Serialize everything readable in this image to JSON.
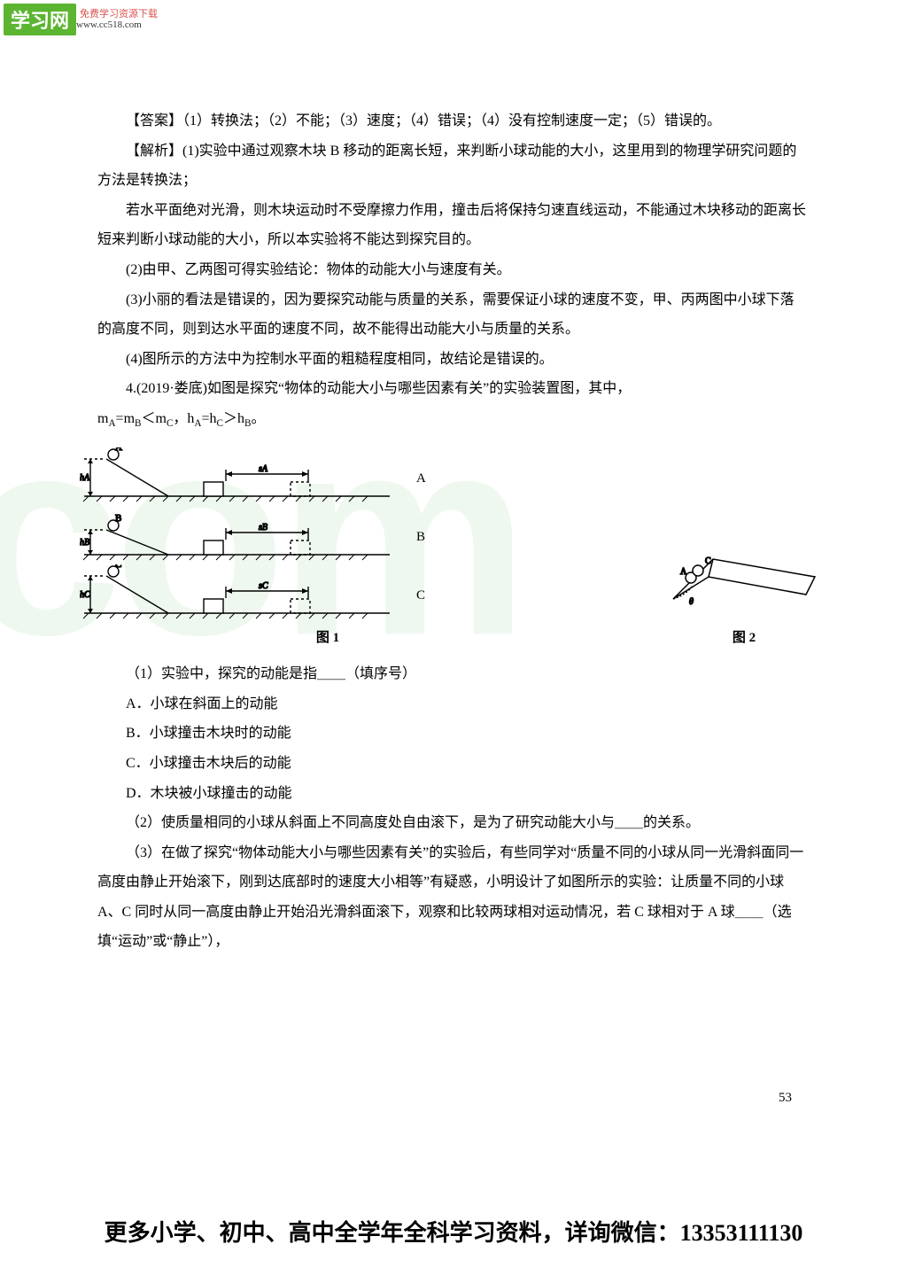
{
  "logo": {
    "main": "学习网",
    "sub1": "免费学习资源下载",
    "sub2": "www.cc518.com"
  },
  "watermark": "com",
  "paragraphs": {
    "answer": "【答案】（1）转换法；（2）不能；（3）速度；（4）错误；（4）没有控制速度一定；（5）错误的。",
    "ans2": "",
    "expl1": "【解析】(1)实验中通过观察木块 B 移动的距离长短，来判断小球动能的大小，这里用到的物理学研究问题的方法是转换法；",
    "expl2": "若水平面绝对光滑，则木块运动时不受摩擦力作用，撞击后将保持匀速直线运动，不能通过木块移动的距离长短来判断小球动能的大小，所以本实验将不能达到探究目的。",
    "expl3": "(2)由甲、乙两图可得实验结论：物体的动能大小与速度有关。",
    "expl4": "(3)小丽的看法是错误的，因为要探究动能与质量的关系，需要保证小球的速度不变，甲、丙两图中小球下落的高度不同，则到达水平面的速度不同，故不能得出动能大小与质量的关系。",
    "expl5": "(4)图所示的方法中为控制水平面的粗糙程度相同，故结论是错误的。",
    "q4": "4.(2019·娄底)如图是探究“物体的动能大小与哪些因素有关”的实验装置图，其中，",
    "q4var": "mA=mB＜mC，hA=hC＞hB。",
    "q4_1": "（1）实验中，探究的动能是指＿＿（填序号）",
    "optA": "A．小球在斜面上的动能",
    "optB": "B．小球撞击木块时的动能",
    "optC": "C．小球撞击木块后的动能",
    "optD": "D．木块被小球撞击的动能",
    "q4_2": "（2）使质量相同的小球从斜面上不同高度处自由滚下，是为了研究动能大小与＿＿的关系。",
    "q4_3": "（3）在做了探究“物体动能大小与哪些因素有关”的实验后，有些同学对“质量不同的小球从同一光滑斜面同一高度由静止开始滚下，刚到达底部时的速度大小相等”有疑惑，小明设计了如图所示的实验：让质量不同的小球 A、C 同时从同一高度由静止开始沿光滑斜面滚下，观察和比较两球相对运动情况，若 C 球相对于 A 球＿＿（选填“运动”或“静止”），"
  },
  "diagrams": {
    "rows": [
      {
        "label": "A",
        "ball": "A",
        "h": "hA",
        "s": "sA",
        "ballH": 42
      },
      {
        "label": "B",
        "ball": "B",
        "h": "hB",
        "s": "sB",
        "ballH": 28
      },
      {
        "label": "C",
        "ball": "C",
        "h": "hC",
        "s": "sC",
        "ballH": 42
      }
    ],
    "cap1": "图 1",
    "cap2": "图 2"
  },
  "pageNumber": "53",
  "footer": "更多小学、初中、高中全学年全科学习资料，详询微信：13353111130",
  "colors": {
    "logo": "#5cb531",
    "wm": "rgba(120,200,120,0.12)"
  }
}
